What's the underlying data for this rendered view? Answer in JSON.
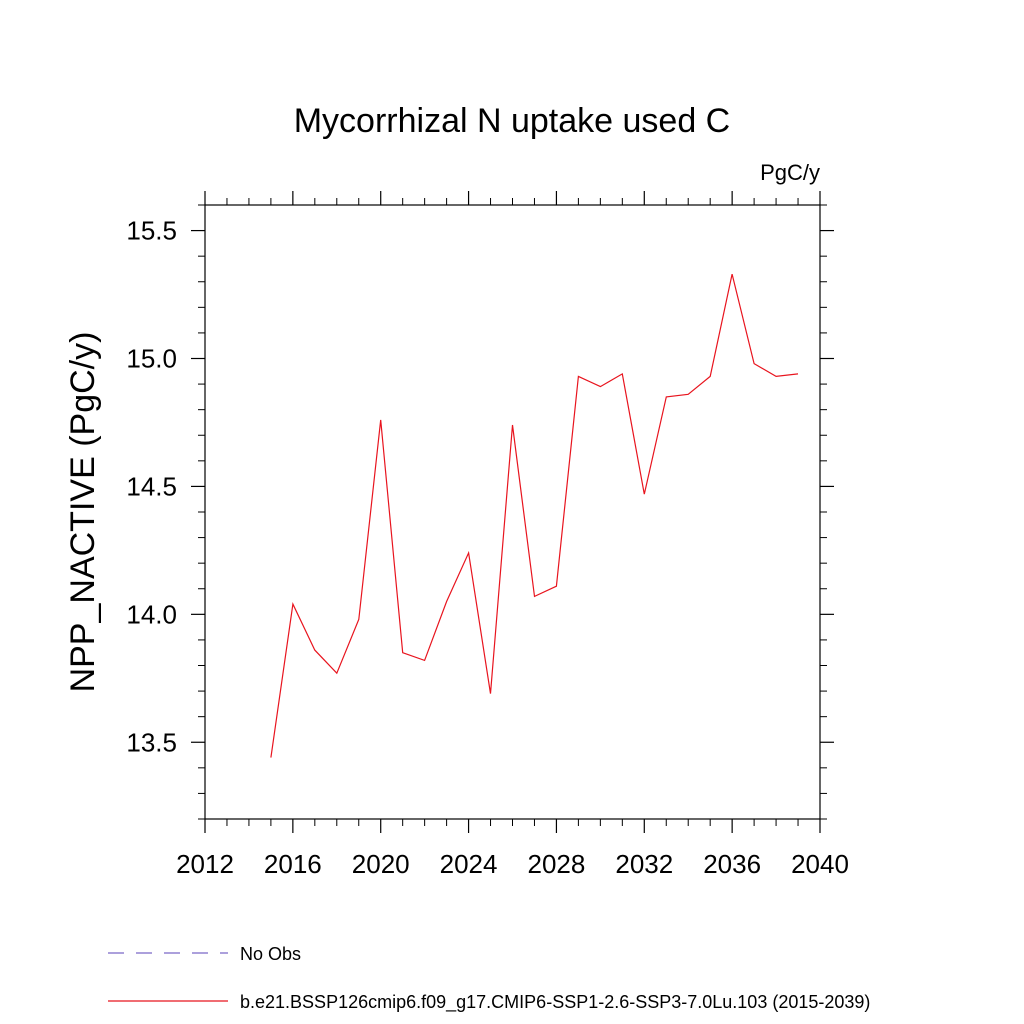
{
  "chart_data": {
    "type": "line",
    "title": "Mycorrhizal N uptake used C",
    "units_label": "PgC/y",
    "ylabel": "NPP_NACTIVE  (PgC/y)",
    "xlabel": "",
    "xlim": [
      2012,
      2040
    ],
    "ylim": [
      13.2,
      15.6
    ],
    "x_ticks": [
      2012,
      2016,
      2020,
      2024,
      2028,
      2032,
      2036,
      2040
    ],
    "y_ticks": [
      13.5,
      14.0,
      14.5,
      15.0,
      15.5
    ],
    "x_tick_labels": [
      "2012",
      "2016",
      "2020",
      "2024",
      "2028",
      "2032",
      "2036",
      "2040"
    ],
    "y_tick_labels": [
      "13.5",
      "14.0",
      "14.5",
      "15.0",
      "15.5"
    ],
    "grid": false,
    "legend_position": "bottom-left",
    "series": [
      {
        "name": "b.e21.BSSP126cmip6.f09_g17.CMIP6-SSP1-2.6-SSP3-7.0Lu.103 (2015-2039)",
        "color": "#e8141e",
        "style": "solid",
        "x": [
          2015,
          2016,
          2017,
          2018,
          2019,
          2020,
          2021,
          2022,
          2023,
          2024,
          2025,
          2026,
          2027,
          2028,
          2029,
          2030,
          2031,
          2032,
          2033,
          2034,
          2035,
          2036,
          2037,
          2038,
          2039
        ],
        "values": [
          13.44,
          14.04,
          13.86,
          13.77,
          13.98,
          14.76,
          13.85,
          13.82,
          14.05,
          14.24,
          13.69,
          14.74,
          14.07,
          14.11,
          14.93,
          14.89,
          14.94,
          14.47,
          14.85,
          14.86,
          14.93,
          15.33,
          14.98,
          14.93,
          14.94
        ]
      }
    ],
    "legend": [
      {
        "label": "No Obs",
        "color": "#7b68c8",
        "style": "dashed"
      },
      {
        "label": "b.e21.BSSP126cmip6.f09_g17.CMIP6-SSP1-2.6-SSP3-7.0Lu.103 (2015-2039)",
        "color": "#e8141e",
        "style": "solid"
      }
    ]
  }
}
